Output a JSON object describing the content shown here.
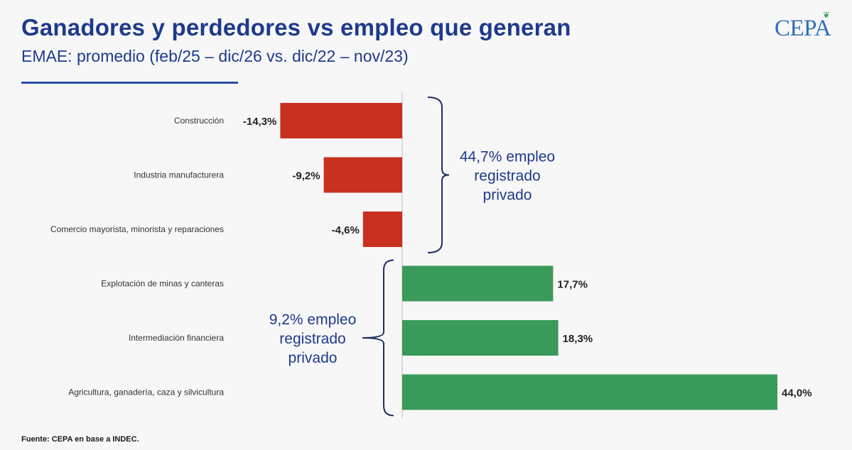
{
  "header": {
    "title": "Ganadores y perdedores vs empleo que generan",
    "subtitle": "EMAE: promedio (feb/25 – dic/26 vs. dic/22 – nov/23)"
  },
  "logo": {
    "text": "CEPA"
  },
  "source": "Fuente: CEPA en base a INDEC.",
  "colors": {
    "negative": "#c8301f",
    "positive": "#3a9a5a",
    "accent": "#1f3a8c",
    "bracket": "#1e2f66"
  },
  "chart_data": {
    "type": "bar",
    "orientation": "horizontal",
    "categories": [
      "Construcción",
      "Industria manufacturera",
      "Comercio mayorista, minorista y reparaciones",
      "Explotación de minas y canteras",
      "Intermediación financiera",
      "Agricultura, ganadería, caza y silvicultura"
    ],
    "values": [
      -14.3,
      -9.2,
      -4.6,
      17.7,
      18.3,
      44.0
    ],
    "data_labels": [
      "-14,3%",
      "-9,2%",
      "-4,6%",
      "17,7%",
      "18,3%",
      "44,0%"
    ],
    "title": "Ganadores y perdedores vs empleo que generan",
    "subtitle": "EMAE: promedio (feb/25 – dic/26 vs. dic/22 – nov/23)",
    "annotations": [
      {
        "text": [
          "44,7% empleo",
          "registrado",
          "privado"
        ],
        "group": [
          0,
          1,
          2
        ]
      },
      {
        "text": [
          "9,2% empleo",
          "registrado",
          "privado"
        ],
        "group": [
          3,
          4,
          5
        ]
      }
    ],
    "xlim": [
      -14.3,
      44.0
    ],
    "grid": false,
    "legend": "none"
  }
}
